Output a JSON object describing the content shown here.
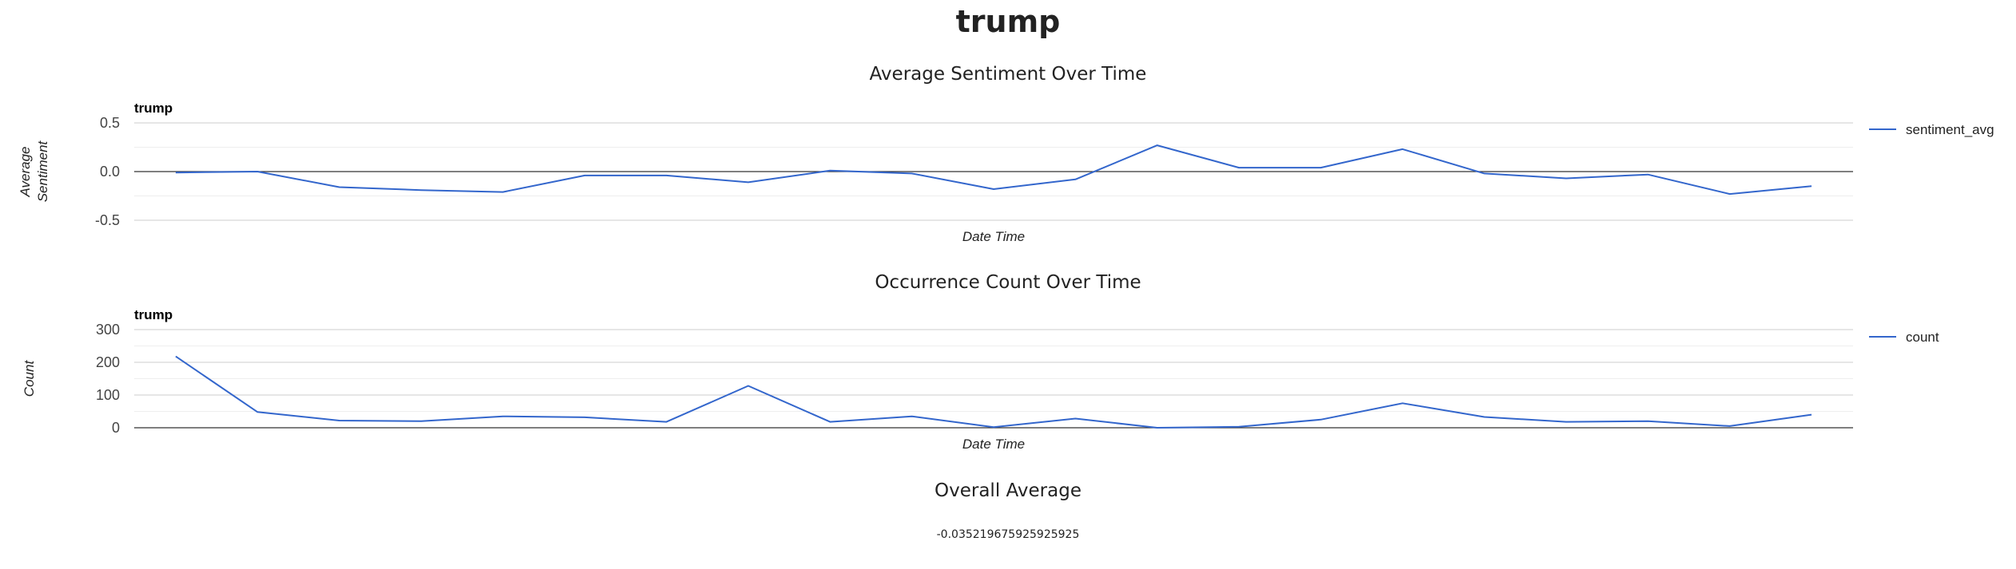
{
  "page": {
    "title": "trump",
    "overall_title": "Overall Average",
    "overall_value": "-0.035219675925925925"
  },
  "chart_data": [
    {
      "type": "line",
      "section_title": "Average Sentiment Over Time",
      "title": "trump",
      "xlabel": "Date Time",
      "ylabel": "Average Sentiment",
      "ylim": [
        -0.5,
        0.5
      ],
      "yticks": [
        {
          "value": 0.5,
          "label": "0.5"
        },
        {
          "value": 0.0,
          "label": "0.0"
        },
        {
          "value": -0.5,
          "label": "-0.5"
        }
      ],
      "minor_gridlines": [
        0.25,
        -0.25
      ],
      "baseline": 0,
      "grid": true,
      "legend_position": "right",
      "color": "#3366cc",
      "series": [
        {
          "name": "sentiment_avg",
          "values": [
            -0.01,
            0.0,
            -0.16,
            -0.19,
            -0.21,
            -0.04,
            -0.04,
            -0.11,
            0.01,
            -0.02,
            -0.18,
            -0.08,
            0.27,
            0.04,
            0.04,
            0.23,
            -0.02,
            -0.07,
            -0.03,
            -0.23,
            -0.15
          ]
        }
      ]
    },
    {
      "type": "line",
      "section_title": "Occurrence Count Over Time",
      "title": "trump",
      "xlabel": "Date Time",
      "ylabel": "Count",
      "ylim": [
        0,
        300
      ],
      "yticks": [
        {
          "value": 300,
          "label": "300"
        },
        {
          "value": 200,
          "label": "200"
        },
        {
          "value": 100,
          "label": "100"
        },
        {
          "value": 0,
          "label": "0"
        }
      ],
      "minor_gridlines": [
        250,
        150,
        50
      ],
      "baseline": 0,
      "grid": true,
      "legend_position": "right",
      "color": "#3366cc",
      "series": [
        {
          "name": "count",
          "values": [
            218,
            48,
            22,
            20,
            35,
            32,
            18,
            128,
            18,
            35,
            2,
            28,
            0,
            3,
            25,
            75,
            33,
            18,
            20,
            5,
            40
          ]
        }
      ]
    }
  ]
}
